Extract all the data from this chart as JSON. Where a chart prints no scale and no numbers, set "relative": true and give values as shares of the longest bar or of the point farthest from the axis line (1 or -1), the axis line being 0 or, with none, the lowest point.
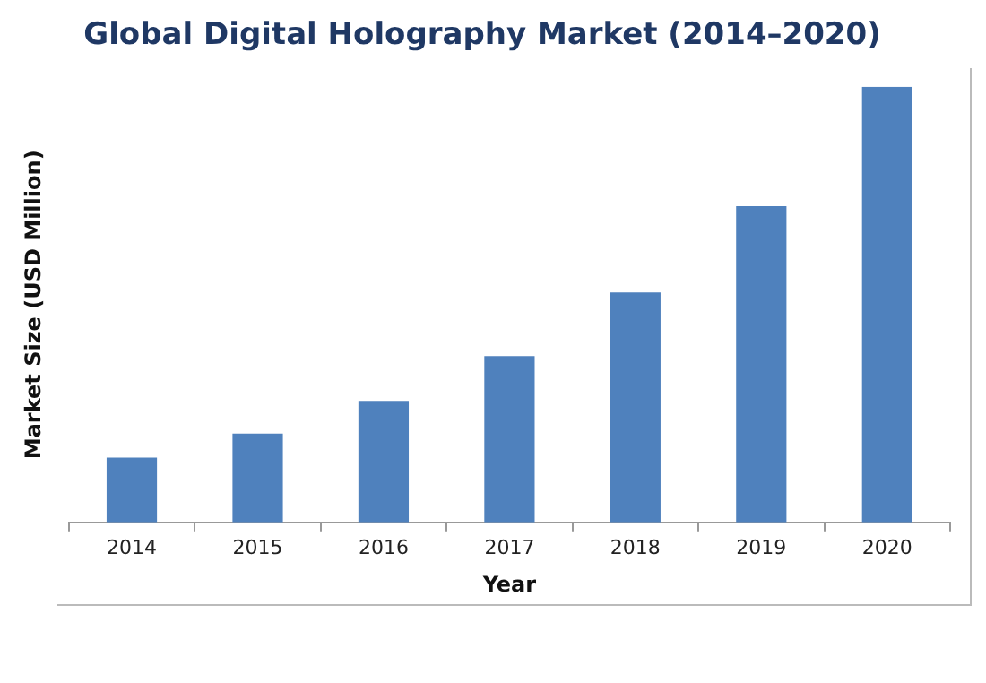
{
  "chart_data": {
    "type": "bar",
    "title": "Global Digital Holography Market (2014–2020)",
    "xlabel": "Year",
    "ylabel": "Market Size (USD Million)",
    "categories": [
      "2014",
      "2015",
      "2016",
      "2017",
      "2018",
      "2019",
      "2020"
    ],
    "values": [
      0.149,
      0.204,
      0.279,
      0.382,
      0.528,
      0.726,
      1
    ],
    "color": "#4f81bd",
    "relative": true,
    "grid": false,
    "legend": false
  }
}
